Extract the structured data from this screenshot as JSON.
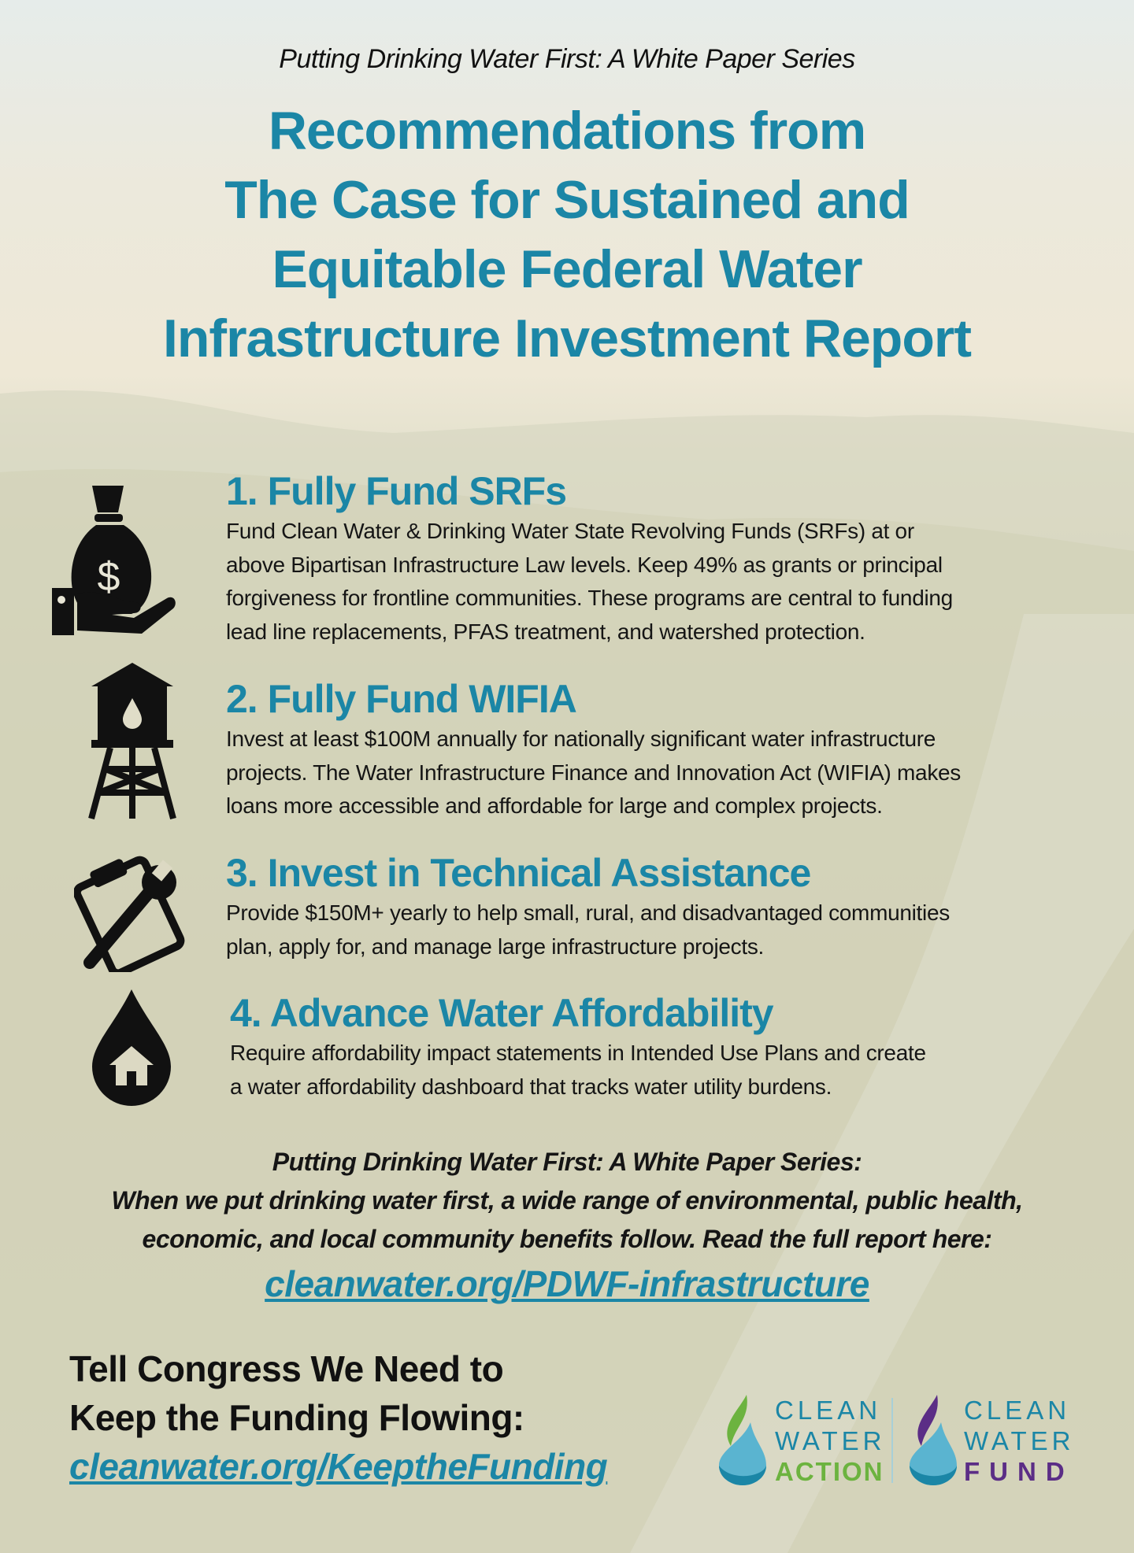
{
  "header": {
    "series": "Putting Drinking Water First: A White Paper Series",
    "title_lines": [
      "Recommendations from",
      "The Case for Sustained and",
      "Equitable Federal Water",
      "Infrastructure Investment Report"
    ]
  },
  "items": [
    {
      "icon": "money-bag-hand-icon",
      "heading": "1. Fully Fund SRFs",
      "lines": [
        "Fund Clean Water & Drinking Water State Revolving Funds (SRFs) at or",
        "above Bipartisan Infrastructure Law levels. Keep 49% as grants or principal",
        "forgiveness for frontline communities. These programs are central to funding",
        "lead line replacements, PFAS treatment, and watershed protection."
      ]
    },
    {
      "icon": "water-tower-icon",
      "heading": "2. Fully Fund WIFIA",
      "lines": [
        "Invest at least $100M annually for nationally significant water infrastructure",
        "projects. The Water Infrastructure Finance and Innovation Act (WIFIA) makes",
        "loans more accessible and affordable for large and complex projects."
      ]
    },
    {
      "icon": "clipboard-wrench-icon",
      "heading": "3. Invest in Technical Assistance",
      "lines": [
        "Provide $150M+ yearly to help small, rural, and disadvantaged communities",
        "plan, apply for, and manage large infrastructure projects."
      ]
    },
    {
      "icon": "water-drop-house-icon",
      "heading": "4. Advance Water Affordability",
      "lines": [
        "Require affordability impact statements in Intended Use Plans and create",
        "a water affordability dashboard that tracks water utility burdens."
      ]
    }
  ],
  "footer": {
    "lines": [
      "Putting Drinking Water First: A White Paper Series:",
      "When we put drinking water first, a wide range of environmental, public health,",
      "economic, and local community benefits follow. Read the full report here:"
    ],
    "report_link": "cleanwater.org/PDWF-infrastructure"
  },
  "cta": {
    "lines": [
      "Tell Congress We Need to",
      "Keep the Funding Flowing:"
    ],
    "link": "cleanwater.org/KeeptheFunding"
  },
  "logos": {
    "action": [
      "CLEAN",
      "WATER",
      "ACTION"
    ],
    "fund": [
      "CLEAN",
      "WATER",
      "FUND"
    ]
  },
  "colors": {
    "accent": "#1b86a6",
    "action_green": "#6cb33f",
    "fund_purple": "#5b2d86",
    "drop_blue": "#5ab4d0"
  }
}
